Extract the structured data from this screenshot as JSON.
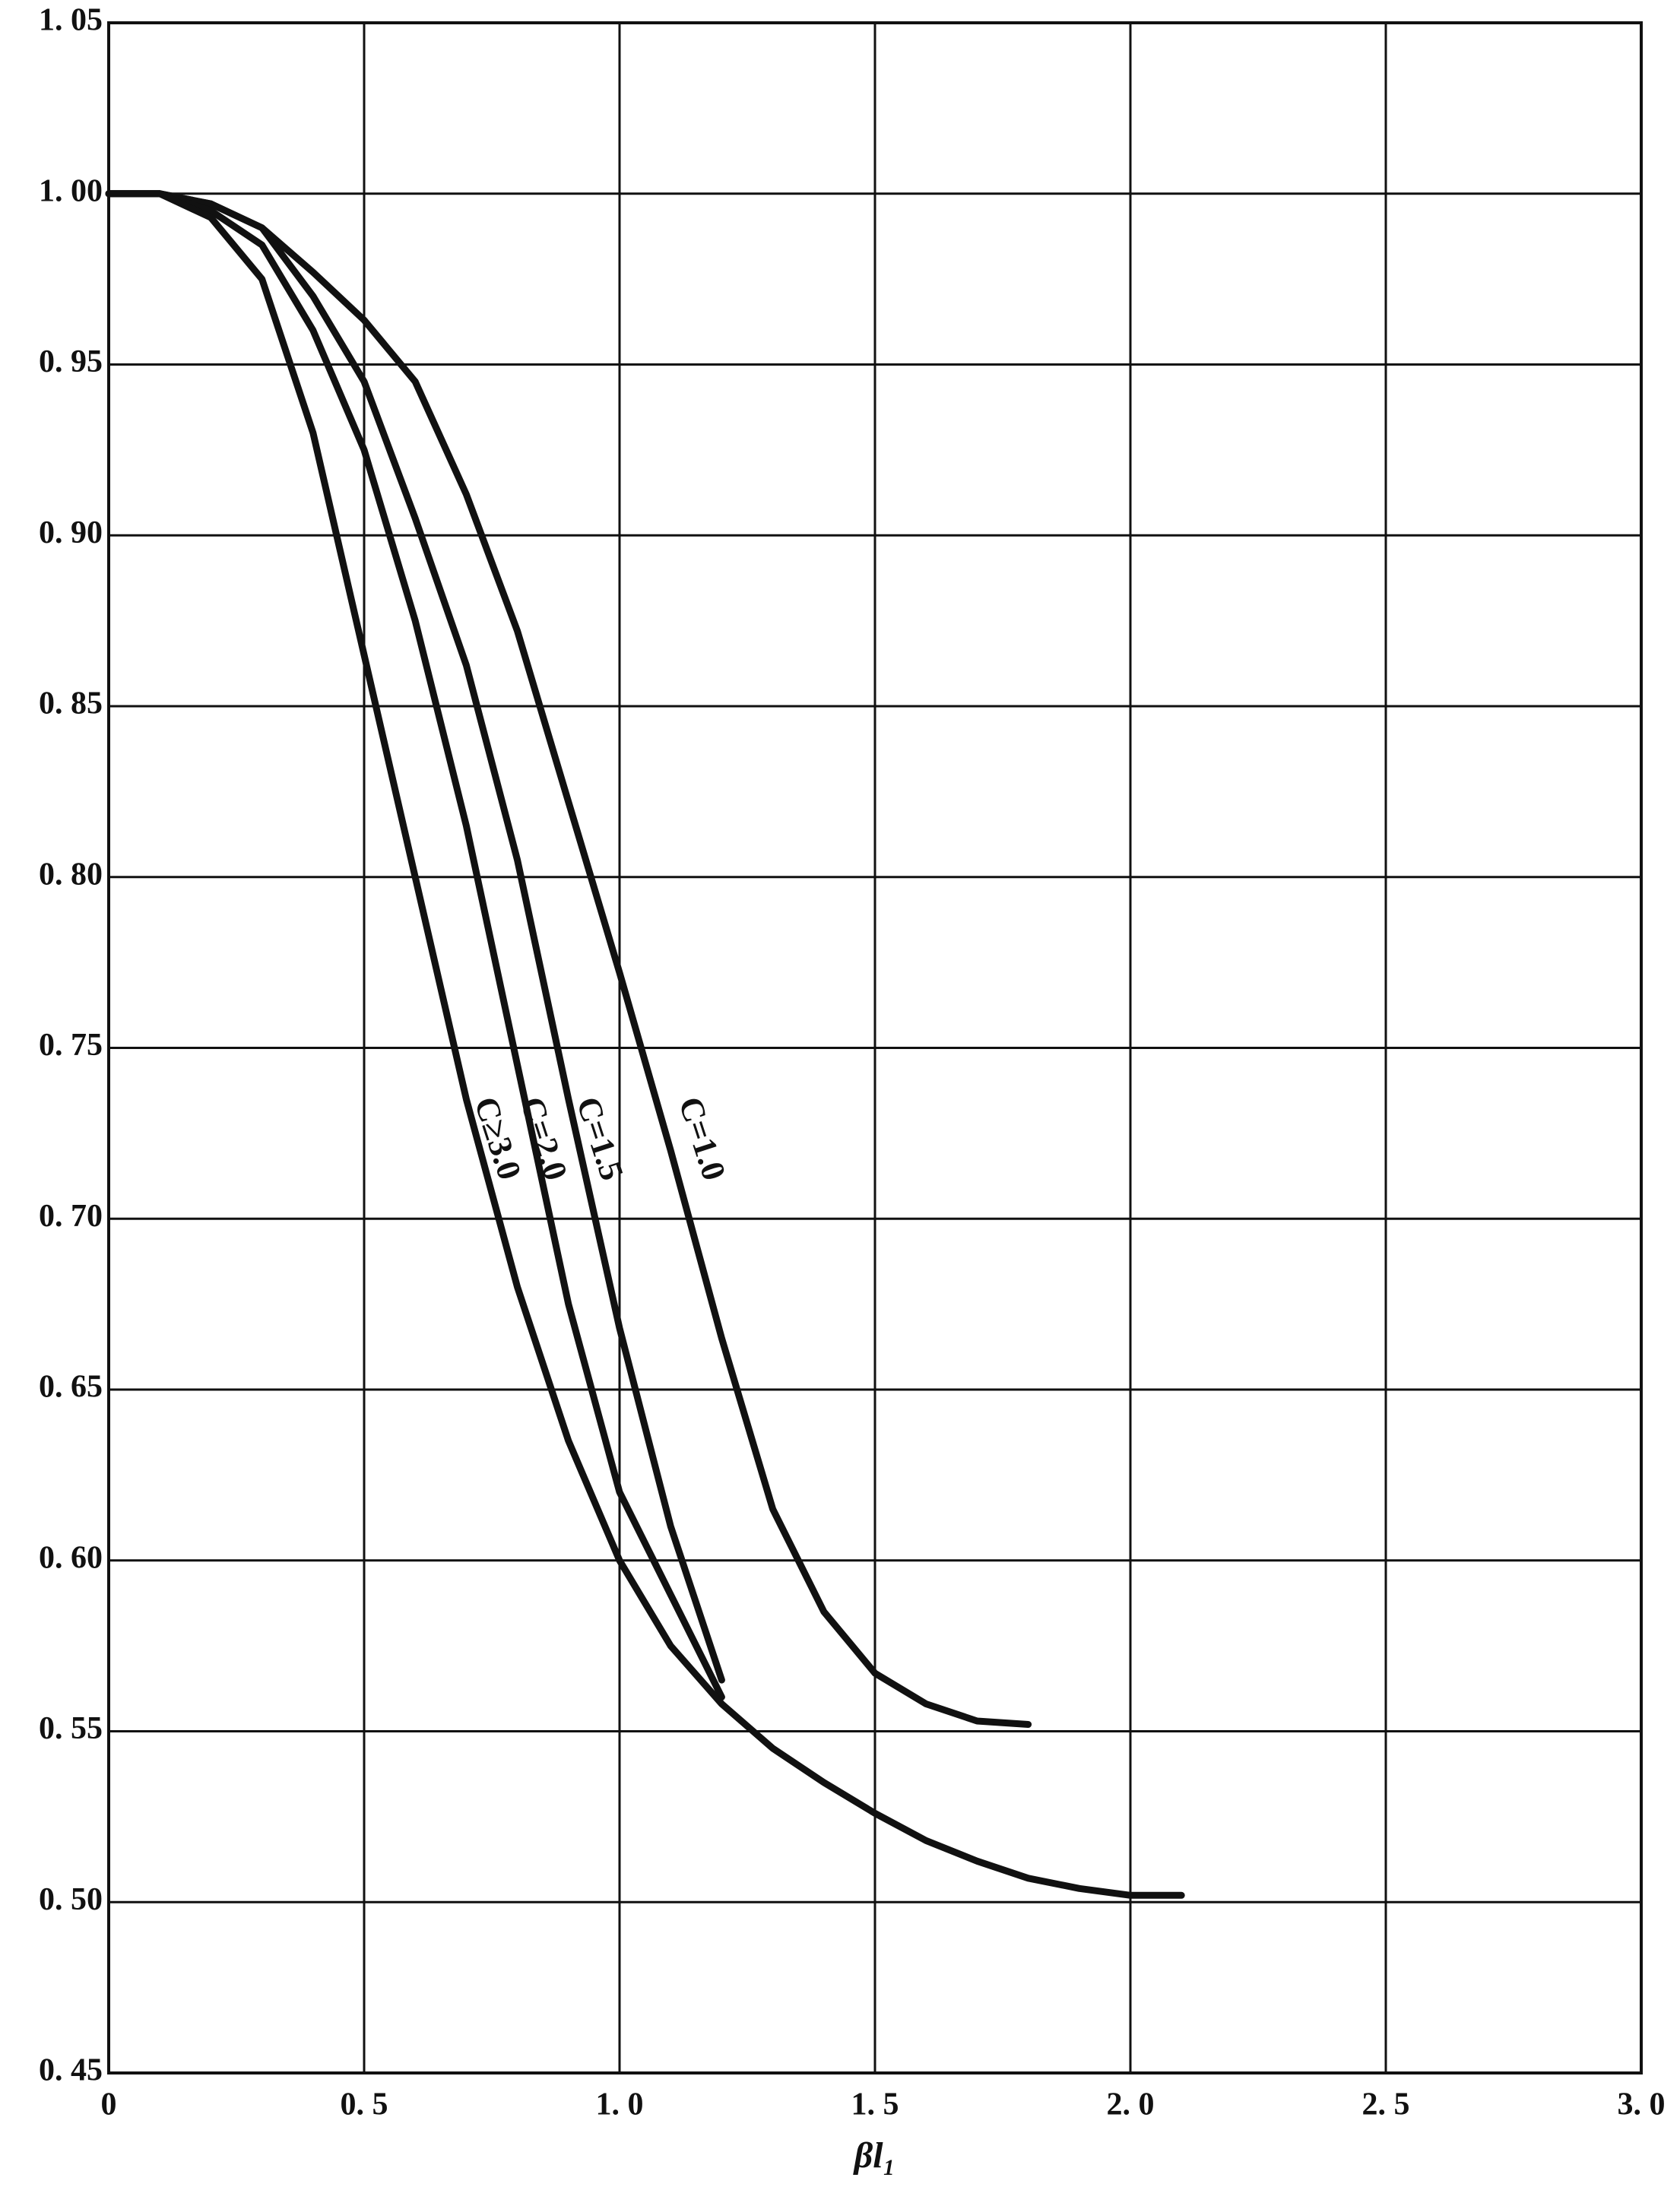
{
  "chart_data": {
    "type": "line",
    "x_label": "βl₁",
    "x": [
      0,
      0.1,
      0.2,
      0.3,
      0.4,
      0.5,
      0.6,
      0.7,
      0.8,
      0.9,
      1.0,
      1.1,
      1.2,
      1.3,
      1.4,
      1.5,
      1.6,
      1.7,
      1.8,
      1.9,
      2.0,
      2.1
    ],
    "xlim": [
      0,
      3.0
    ],
    "xticks": [
      0,
      {
        "value": 0.5,
        "label": "0. 5"
      },
      {
        "value": 1.0,
        "label": "1. 0"
      },
      {
        "value": 1.5,
        "label": "1. 5"
      },
      {
        "value": 2.0,
        "label": "2. 0"
      },
      {
        "value": 2.5,
        "label": "2. 5"
      },
      {
        "value": 3.0,
        "label": "3. 0"
      }
    ],
    "ylim": [
      0.45,
      1.05
    ],
    "yticks": [
      {
        "value": 0.45,
        "label": "0. 45"
      },
      {
        "value": 0.5,
        "label": "0. 50"
      },
      {
        "value": 0.55,
        "label": "0. 55"
      },
      {
        "value": 0.6,
        "label": "0. 60"
      },
      {
        "value": 0.65,
        "label": "0. 65"
      },
      {
        "value": 0.7,
        "label": "0. 70"
      },
      {
        "value": 0.75,
        "label": "0. 75"
      },
      {
        "value": 0.8,
        "label": "0. 80"
      },
      {
        "value": 0.85,
        "label": "0. 85"
      },
      {
        "value": 0.9,
        "label": "0. 90"
      },
      {
        "value": 0.95,
        "label": "0. 95"
      },
      {
        "value": 1.0,
        "label": "1. 00"
      },
      {
        "value": 1.05,
        "label": "1. 05"
      }
    ],
    "grid": true,
    "series": [
      {
        "name": "C=1.0",
        "color": "#111111",
        "values": [
          1.0,
          1.0,
          0.997,
          0.99,
          0.977,
          0.963,
          0.945,
          0.912,
          0.872,
          0.822,
          0.772,
          0.72,
          0.665,
          0.615,
          0.585,
          0.567,
          0.558,
          0.553,
          0.552,
          null,
          null,
          null
        ]
      },
      {
        "name": "C=1.5",
        "color": "#111111",
        "values": [
          1.0,
          1.0,
          0.997,
          0.99,
          0.97,
          0.945,
          0.905,
          0.862,
          0.805,
          0.735,
          0.668,
          0.61,
          0.565,
          null,
          null,
          null,
          null,
          null,
          null,
          null,
          null,
          null
        ]
      },
      {
        "name": "C=2.0",
        "color": "#111111",
        "values": [
          1.0,
          1.0,
          0.995,
          0.985,
          0.96,
          0.925,
          0.875,
          0.815,
          0.745,
          0.675,
          0.62,
          0.59,
          0.56,
          null,
          null,
          null,
          null,
          null,
          null,
          null,
          null,
          null
        ]
      },
      {
        "name": "C≥3.0",
        "color": "#111111",
        "values": [
          1.0,
          1.0,
          0.993,
          0.975,
          0.93,
          0.865,
          0.8,
          0.735,
          0.68,
          0.635,
          0.6,
          0.575,
          0.558,
          0.545,
          0.535,
          0.526,
          0.518,
          0.512,
          0.507,
          0.504,
          0.502,
          0.502
        ]
      }
    ]
  }
}
